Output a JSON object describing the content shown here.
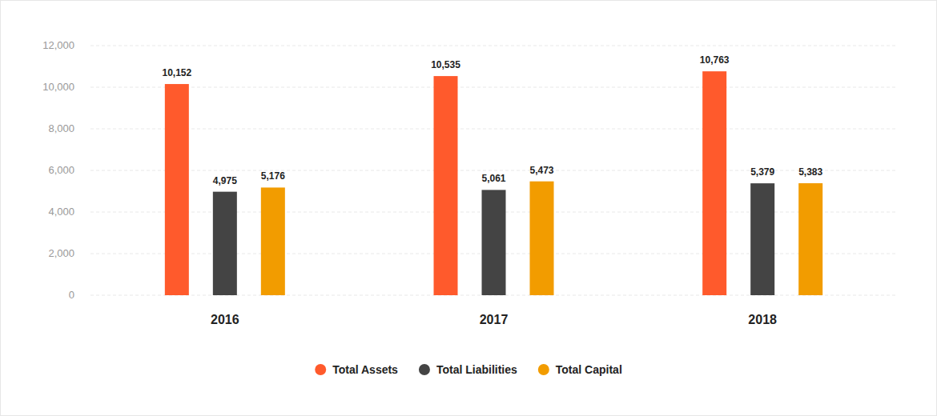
{
  "chart_data": {
    "type": "bar",
    "categories": [
      "2016",
      "2017",
      "2018"
    ],
    "series": [
      {
        "name": "Total Assets",
        "color": "#ff5a2c",
        "values": [
          10152,
          10535,
          10763
        ],
        "value_labels": [
          "10,152",
          "10,535",
          "10,763"
        ]
      },
      {
        "name": "Total Liabilities",
        "color": "#444444",
        "values": [
          4975,
          5061,
          5379
        ],
        "value_labels": [
          "4,975",
          "5,061",
          "5,379"
        ]
      },
      {
        "name": "Total Capital",
        "color": "#f29c00",
        "values": [
          5176,
          5473,
          5383
        ],
        "value_labels": [
          "5,176",
          "5,473",
          "5,383"
        ]
      }
    ],
    "ylim": [
      0,
      12000
    ],
    "yticks": [
      0,
      {
        "value": 2000,
        "label": "2,000"
      },
      {
        "value": 4000,
        "label": "4,000"
      },
      {
        "value": 6000,
        "label": "6,000"
      },
      {
        "value": 8000,
        "label": "8,000"
      },
      {
        "value": 10000,
        "label": "10,000"
      },
      {
        "value": 12000,
        "label": "12,000"
      }
    ],
    "grid": true,
    "legend": "bottom",
    "data_labels": true
  }
}
